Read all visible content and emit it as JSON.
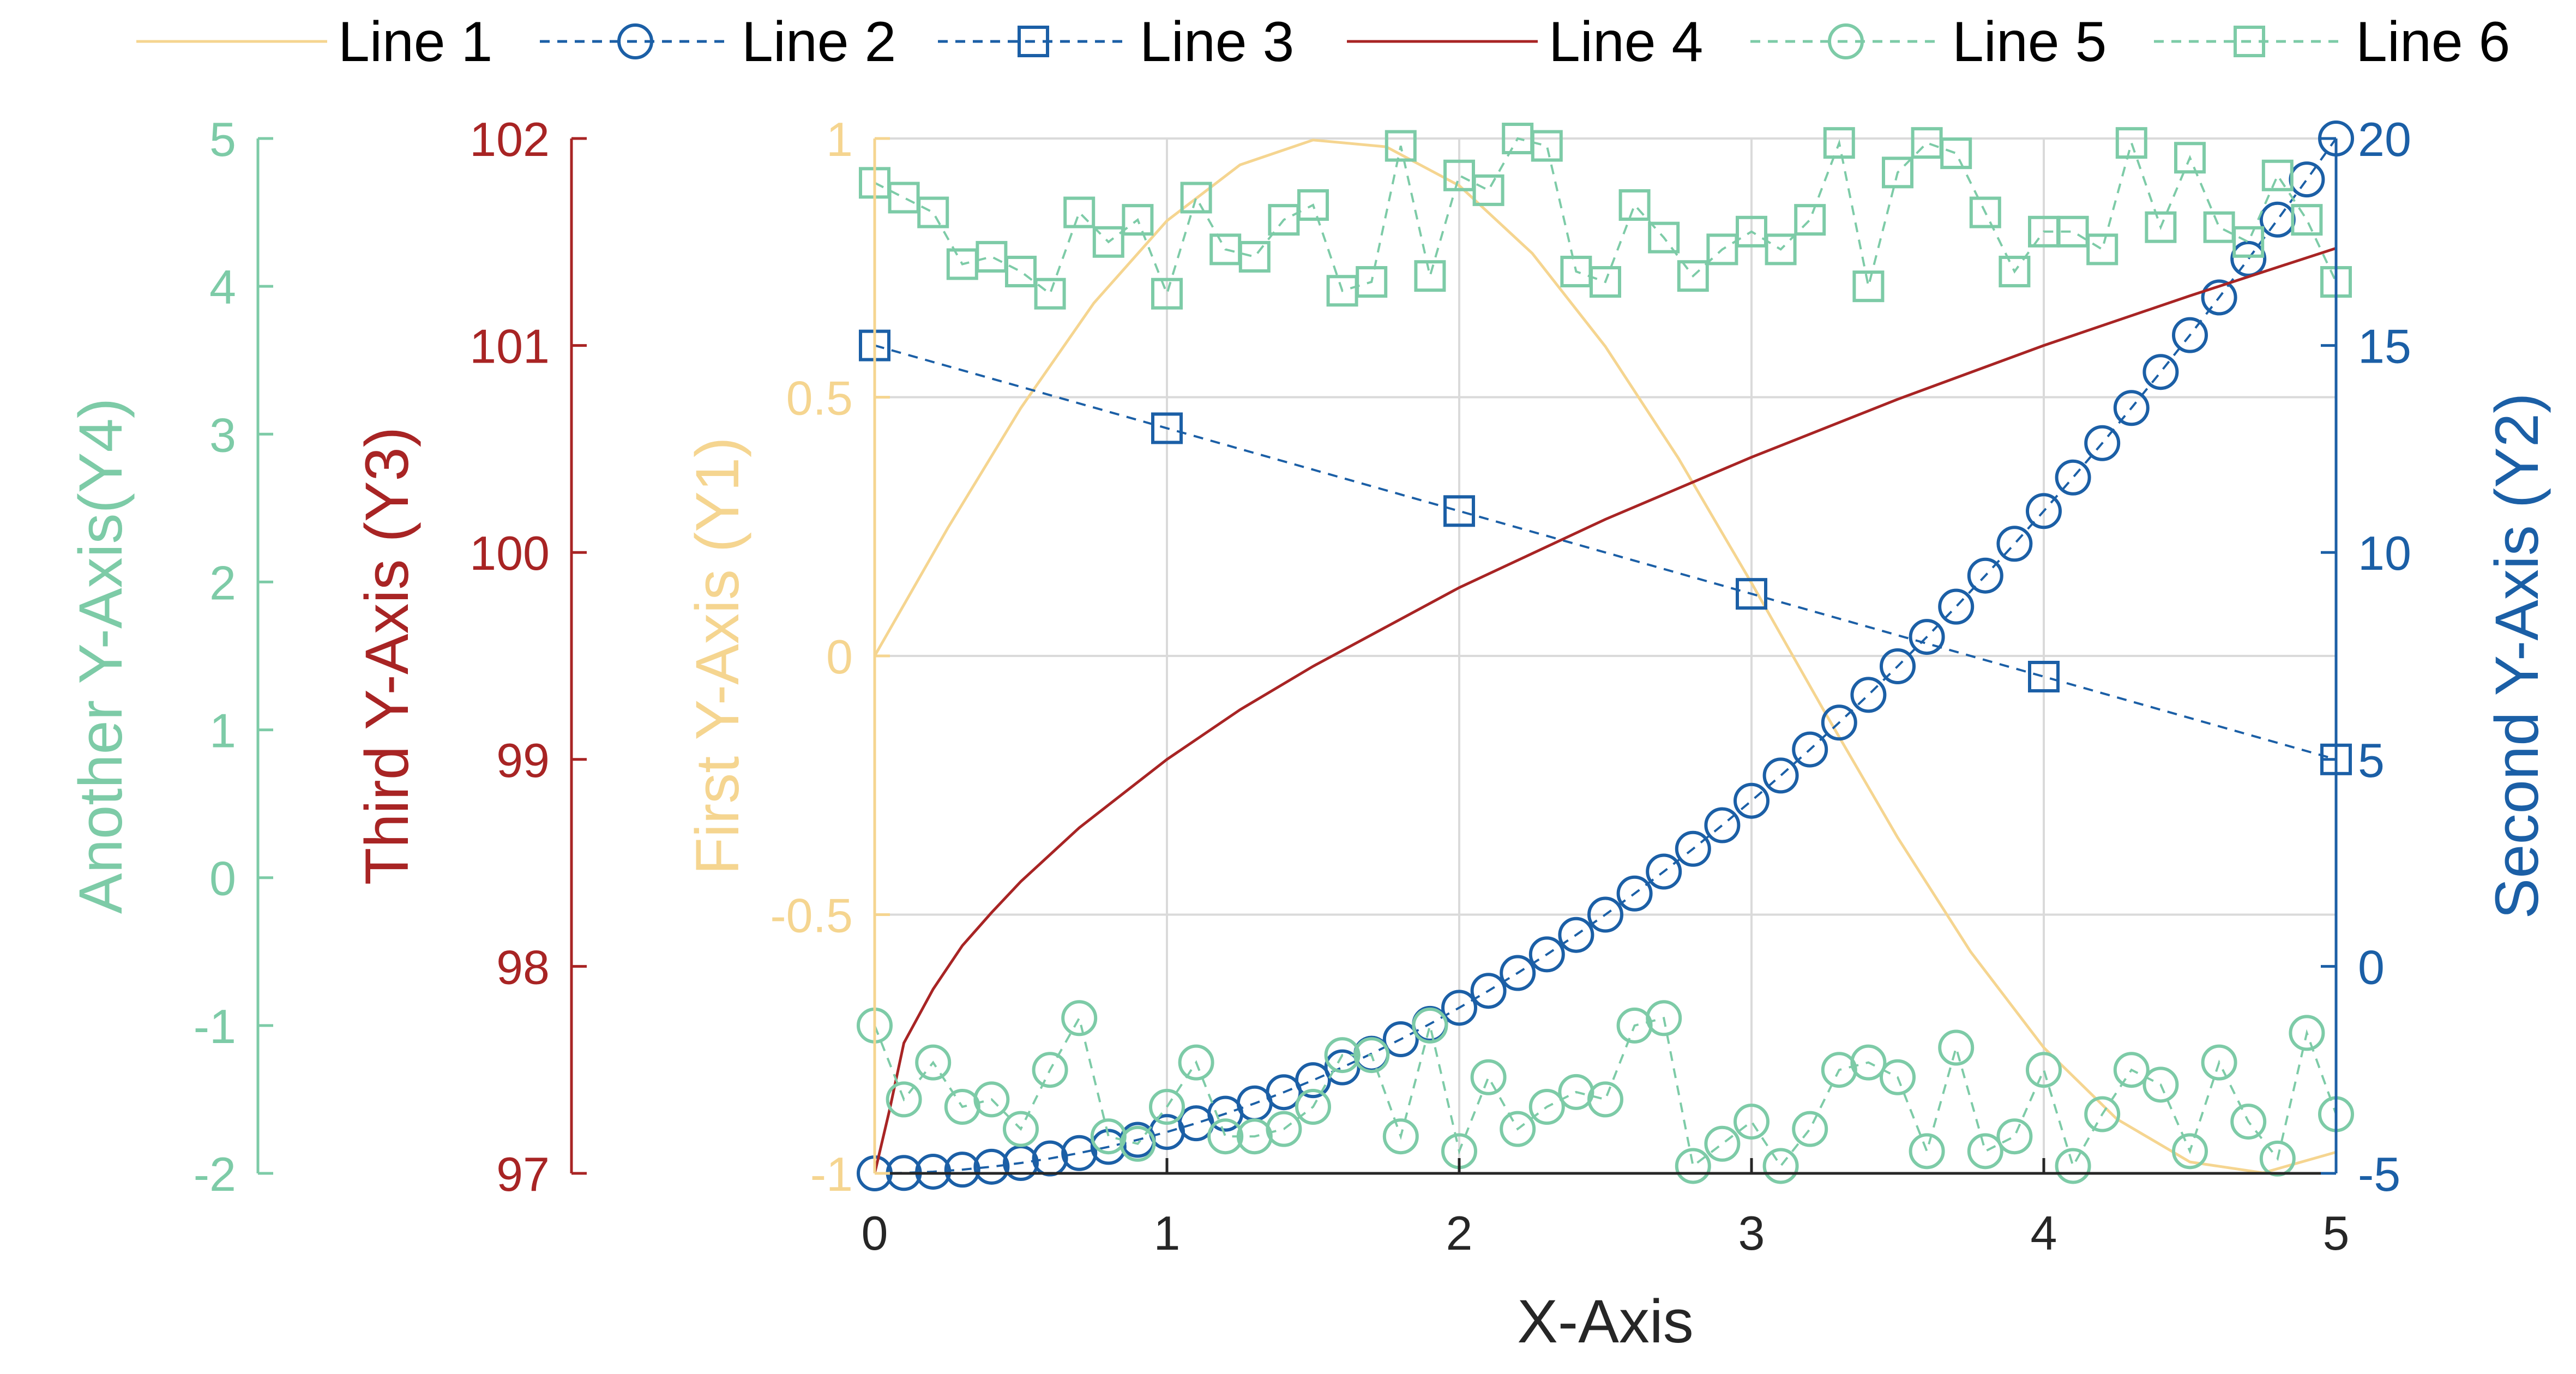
{
  "chart_data": {
    "type": "line",
    "xlabel": "X-Axis",
    "xlim": [
      0,
      5
    ],
    "grid": true,
    "legend_position": "top",
    "axes": {
      "y1": {
        "label": "First Y-Axis (Y1)",
        "lim": [
          -1,
          1
        ],
        "ticks": [
          -1,
          -0.5,
          0,
          0.5,
          1
        ],
        "tick_labels": [
          "-1",
          "-0.5",
          "0",
          "0.5",
          "1"
        ],
        "color": "#F5D590",
        "side": "left"
      },
      "y2": {
        "label": "Second Y-Axis (Y2)",
        "lim": [
          -5,
          20
        ],
        "ticks": [
          -5,
          0,
          5,
          10,
          15,
          20
        ],
        "tick_labels": [
          "-5",
          "0",
          "5",
          "10",
          "15",
          "20"
        ],
        "color": "#1B5FA6",
        "side": "right"
      },
      "y3": {
        "label": "Third Y-Axis (Y3)",
        "lim": [
          97,
          102
        ],
        "ticks": [
          97,
          98,
          99,
          100,
          101,
          102
        ],
        "tick_labels": [
          "97",
          "98",
          "99",
          "100",
          "101",
          "102"
        ],
        "color": "#A82424",
        "side": "left"
      },
      "y4": {
        "label": "Another Y-Axis(Y4)",
        "lim": [
          -2,
          5
        ],
        "ticks": [
          -2,
          -1,
          0,
          1,
          2,
          3,
          4,
          5
        ],
        "tick_labels": [
          "-2",
          "-1",
          "0",
          "1",
          "2",
          "3",
          "4",
          "5"
        ],
        "color": "#7DCBA7",
        "side": "left"
      }
    },
    "x_ticks": [
      0,
      1,
      2,
      3,
      4,
      5
    ],
    "x_tick_labels": [
      "0",
      "1",
      "2",
      "3",
      "4",
      "5"
    ],
    "series": [
      {
        "name": "Line 1",
        "axis": "y1",
        "color": "#F5D590",
        "style": "solid",
        "marker": "none",
        "x": [
          0,
          0.25,
          0.5,
          0.75,
          1,
          1.25,
          1.5,
          1.75,
          2,
          2.25,
          2.5,
          2.75,
          3,
          3.25,
          3.5,
          3.75,
          4,
          4.25,
          4.5,
          4.75,
          5
        ],
        "y": [
          0,
          0.247,
          0.479,
          0.682,
          0.841,
          0.949,
          0.997,
          0.984,
          0.909,
          0.778,
          0.598,
          0.382,
          0.141,
          -0.108,
          -0.351,
          -0.572,
          -0.757,
          -0.895,
          -0.978,
          -0.999,
          -0.959
        ]
      },
      {
        "name": "Line 2",
        "axis": "y2",
        "color": "#1B5FA6",
        "style": "dashed",
        "marker": "circle",
        "x": [
          0,
          0.1,
          0.2,
          0.3,
          0.4,
          0.5,
          0.6,
          0.7,
          0.8,
          0.9,
          1,
          1.1,
          1.2,
          1.3,
          1.4,
          1.5,
          1.6,
          1.7,
          1.8,
          1.9,
          2,
          2.1,
          2.2,
          2.3,
          2.4,
          2.5,
          2.6,
          2.7,
          2.8,
          2.9,
          3,
          3.1,
          3.2,
          3.3,
          3.4,
          3.5,
          3.6,
          3.7,
          3.8,
          3.9,
          4,
          4.1,
          4.2,
          4.3,
          4.4,
          4.5,
          4.6,
          4.7,
          4.8,
          4.9,
          5
        ],
        "y": [
          -5,
          -4.99,
          -4.96,
          -4.91,
          -4.84,
          -4.75,
          -4.64,
          -4.51,
          -4.36,
          -4.19,
          -4,
          -3.79,
          -3.56,
          -3.31,
          -3.04,
          -2.75,
          -2.44,
          -2.11,
          -1.76,
          -1.39,
          -1,
          -0.59,
          -0.16,
          0.29,
          0.76,
          1.25,
          1.76,
          2.29,
          2.84,
          3.41,
          4,
          4.61,
          5.24,
          5.89,
          6.56,
          7.25,
          7.96,
          8.69,
          9.44,
          10.21,
          11,
          11.81,
          12.64,
          13.49,
          14.36,
          15.25,
          16.16,
          17.09,
          18.04,
          19.01,
          20
        ]
      },
      {
        "name": "Line 3",
        "axis": "y2",
        "color": "#1B5FA6",
        "style": "dashed",
        "marker": "square",
        "x": [
          0,
          1,
          2,
          3,
          4,
          5
        ],
        "y": [
          15,
          13,
          11,
          9,
          7,
          5
        ]
      },
      {
        "name": "Line 4",
        "axis": "y3",
        "color": "#A82424",
        "style": "solid",
        "marker": "none",
        "x": [
          0,
          0.05,
          0.1,
          0.2,
          0.3,
          0.4,
          0.5,
          0.7,
          1,
          1.25,
          1.5,
          2,
          2.5,
          3,
          3.5,
          4,
          4.5,
          5
        ],
        "y": [
          97,
          97.3,
          97.63,
          97.89,
          98.1,
          98.26,
          98.41,
          98.67,
          99,
          99.24,
          99.45,
          99.83,
          100.16,
          100.46,
          100.74,
          101,
          101.24,
          101.47
        ]
      },
      {
        "name": "Line 5",
        "axis": "y4",
        "color": "#7DCBA7",
        "style": "dashed",
        "marker": "circle",
        "x": [
          0,
          0.1,
          0.2,
          0.3,
          0.4,
          0.5,
          0.6,
          0.7,
          0.8,
          0.9,
          1,
          1.1,
          1.2,
          1.3,
          1.4,
          1.5,
          1.6,
          1.7,
          1.8,
          1.9,
          2,
          2.1,
          2.2,
          2.3,
          2.4,
          2.5,
          2.6,
          2.7,
          2.8,
          2.9,
          3,
          3.1,
          3.2,
          3.3,
          3.4,
          3.5,
          3.6,
          3.7,
          3.8,
          3.9,
          4,
          4.1,
          4.2,
          4.3,
          4.4,
          4.5,
          4.6,
          4.7,
          4.8,
          4.9,
          5
        ],
        "y": [
          -1,
          -1.5,
          -1.25,
          -1.55,
          -1.5,
          -1.7,
          -1.3,
          -0.95,
          -1.75,
          -1.8,
          -1.55,
          -1.25,
          -1.75,
          -1.75,
          -1.7,
          -1.55,
          -1.2,
          -1.2,
          -1.75,
          -1.0,
          -1.85,
          -1.35,
          -1.7,
          -1.55,
          -1.45,
          -1.5,
          -1.0,
          -0.95,
          -1.95,
          -1.8,
          -1.65,
          -1.95,
          -1.7,
          -1.3,
          -1.25,
          -1.35,
          -1.85,
          -1.15,
          -1.85,
          -1.75,
          -1.3,
          -1.95,
          -1.6,
          -1.3,
          -1.4,
          -1.85,
          -1.25,
          -1.65,
          -1.9,
          -1.05,
          -1.6
        ]
      },
      {
        "name": "Line 6",
        "axis": "y4",
        "color": "#7DCBA7",
        "style": "dashed",
        "marker": "square",
        "x": [
          0,
          0.1,
          0.2,
          0.3,
          0.4,
          0.5,
          0.6,
          0.7,
          0.8,
          0.9,
          1,
          1.1,
          1.2,
          1.3,
          1.4,
          1.5,
          1.6,
          1.7,
          1.8,
          1.9,
          2,
          2.1,
          2.2,
          2.3,
          2.4,
          2.5,
          2.6,
          2.7,
          2.8,
          2.9,
          3,
          3.1,
          3.2,
          3.3,
          3.4,
          3.5,
          3.6,
          3.7,
          3.8,
          3.9,
          4,
          4.1,
          4.2,
          4.3,
          4.4,
          4.5,
          4.6,
          4.7,
          4.8,
          4.9,
          5
        ],
        "y": [
          4.7,
          4.6,
          4.5,
          4.15,
          4.2,
          4.1,
          3.95,
          4.5,
          4.3,
          4.45,
          3.95,
          4.6,
          4.25,
          4.2,
          4.45,
          4.55,
          3.97,
          4.03,
          4.95,
          4.07,
          4.75,
          4.65,
          5.0,
          4.95,
          4.1,
          4.03,
          4.55,
          4.33,
          4.07,
          4.25,
          4.37,
          4.25,
          4.45,
          4.97,
          4.0,
          4.77,
          4.97,
          4.9,
          4.5,
          4.1,
          4.37,
          4.37,
          4.25,
          4.97,
          4.4,
          4.87,
          4.4,
          4.3,
          4.75,
          4.45,
          4.03
        ]
      }
    ]
  }
}
